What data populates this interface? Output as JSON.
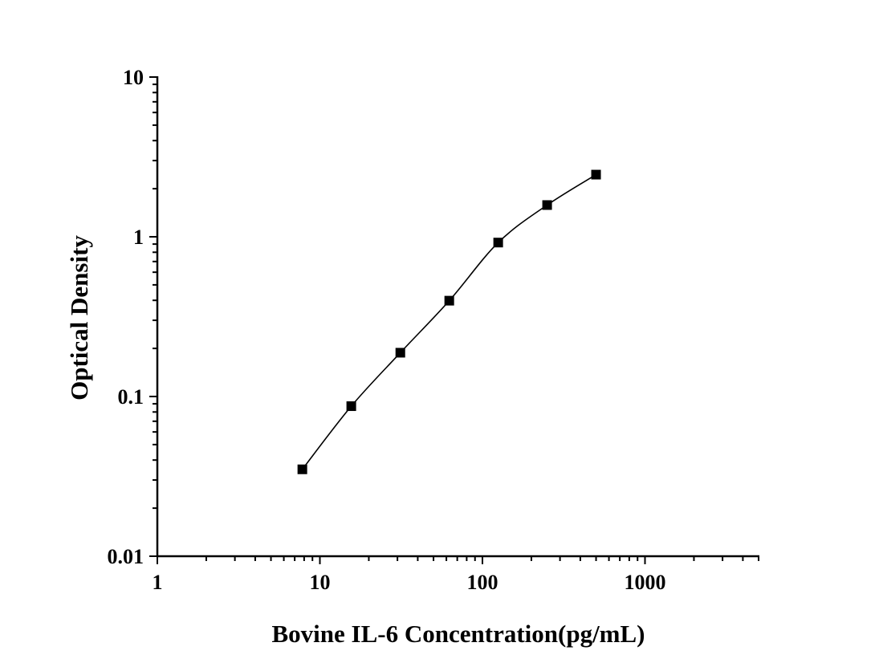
{
  "chart_data": {
    "type": "scatter",
    "title": "",
    "xlabel": "Bovine IL-6 Concentration(pg/mL)",
    "ylabel": "Optical Density",
    "xscale": "log",
    "yscale": "log",
    "xlim": [
      1,
      5000
    ],
    "ylim": [
      0.01,
      10
    ],
    "x_ticks": [
      1,
      10,
      100,
      1000
    ],
    "x_tick_labels": [
      "1",
      "10",
      "100",
      "1000"
    ],
    "y_ticks": [
      0.01,
      0.1,
      1,
      10
    ],
    "y_tick_labels": [
      "0.01",
      "0.1",
      "1",
      "10"
    ],
    "grid": false,
    "legend": "none",
    "marker": "square",
    "fit_line": true,
    "series": [
      {
        "x": [
          7.8,
          15.6,
          31.25,
          62.5,
          125,
          250,
          500
        ],
        "y": [
          0.035,
          0.087,
          0.188,
          0.398,
          0.92,
          1.58,
          2.45
        ]
      }
    ],
    "colors": {
      "axis": "#000000",
      "marker": "#000000",
      "line": "#000000"
    }
  }
}
